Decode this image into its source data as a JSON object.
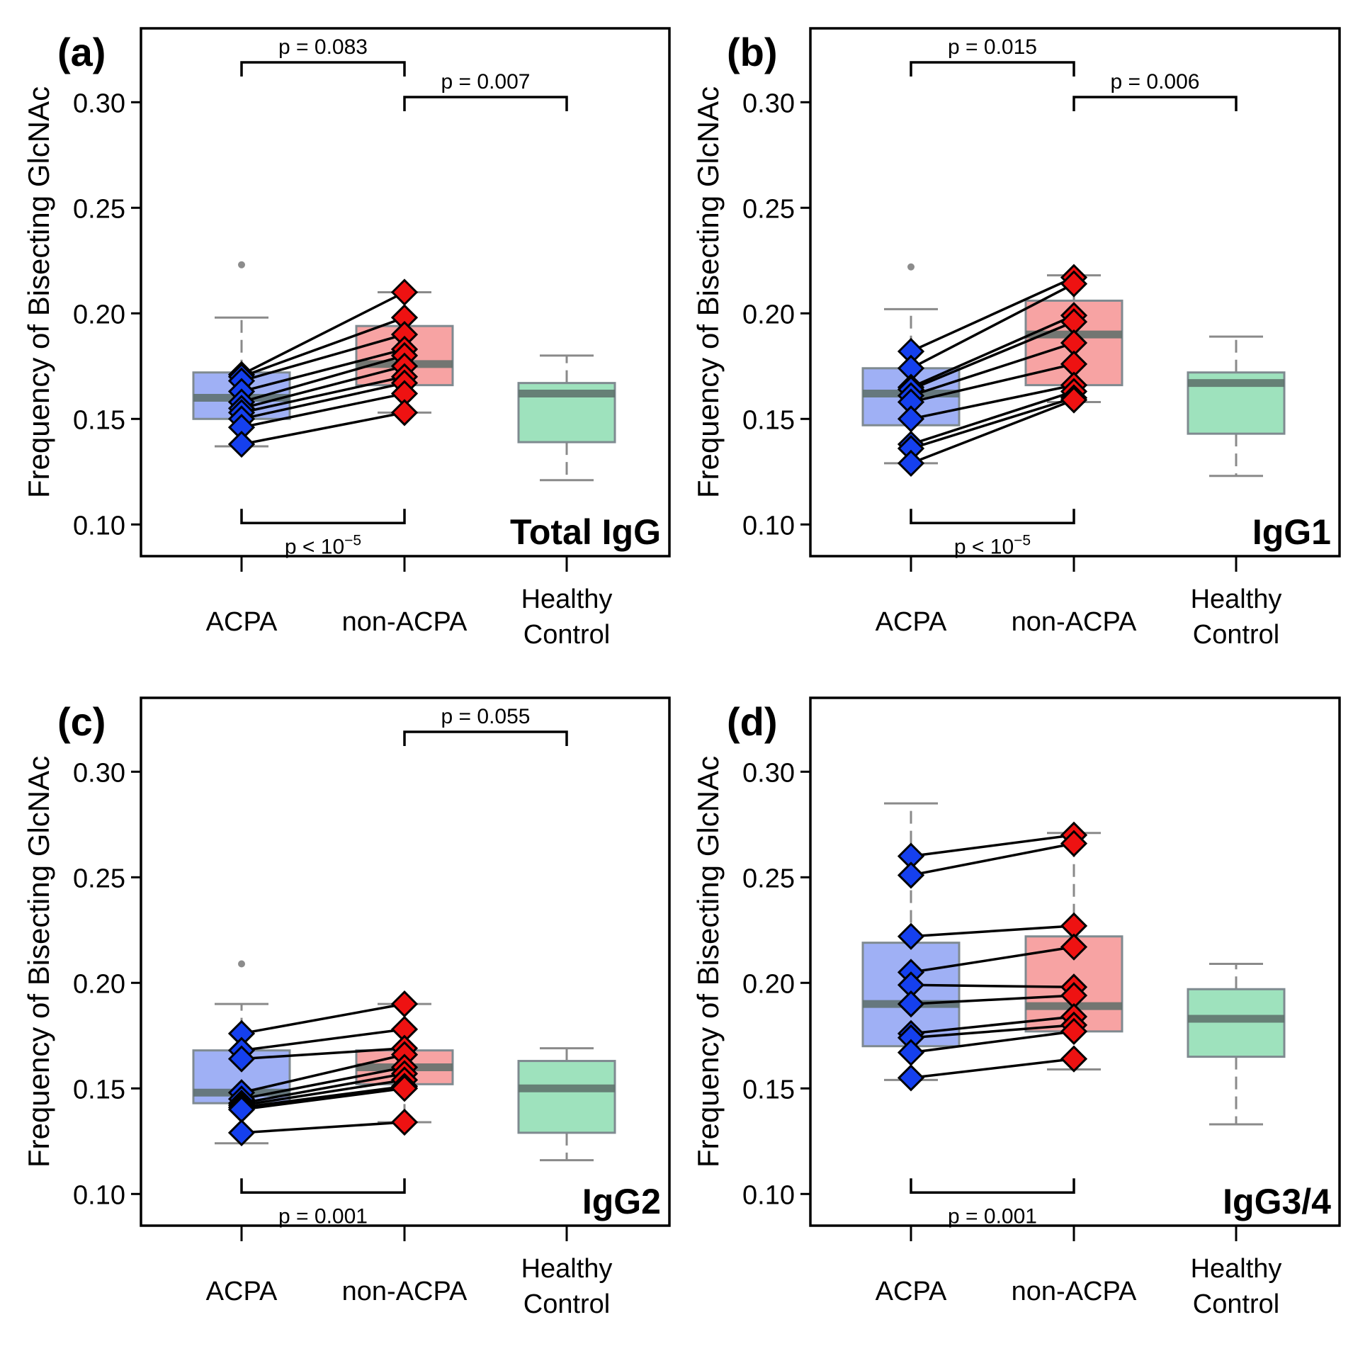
{
  "figure": {
    "ylabel": "Frequency of Bisecting GlcNAc",
    "yticks": [
      0.1,
      0.15,
      0.2,
      0.25,
      0.3
    ],
    "ytick_labels": [
      "0.10",
      "0.15",
      "0.20",
      "0.25",
      "0.30"
    ],
    "ylim": [
      0.085,
      0.335
    ],
    "categories": [
      "ACPA",
      "non-ACPA",
      "Healthy\nControl"
    ],
    "colors": {
      "acpa_box": "#9fb0f5",
      "acpa_point": "#1540ee",
      "nonacpa_box": "#f7a3a3",
      "nonacpa_point": "#ee1212",
      "healthy_box": "#9ee2bd",
      "median_line": "#5d6f6a",
      "whisker": "#8a8a8a"
    }
  },
  "chart_data": [
    {
      "type": "box",
      "panel_label": "(a)",
      "subclass": "Total IgG",
      "categories": [
        "ACPA",
        "non-ACPA",
        "Healthy\nControl"
      ],
      "boxes": [
        {
          "group": "ACPA",
          "min": 0.137,
          "q1": 0.15,
          "median": 0.16,
          "q3": 0.172,
          "max": 0.198,
          "outliers": [
            0.223
          ]
        },
        {
          "group": "non-ACPA",
          "min": 0.153,
          "q1": 0.166,
          "median": 0.176,
          "q3": 0.194,
          "max": 0.21,
          "outliers": []
        },
        {
          "group": "Healthy Control",
          "min": 0.121,
          "q1": 0.139,
          "median": 0.162,
          "q3": 0.167,
          "max": 0.18,
          "outliers": []
        }
      ],
      "paired": {
        "acpa": [
          0.171,
          0.17,
          0.168,
          0.163,
          0.158,
          0.155,
          0.153,
          0.15,
          0.146,
          0.138
        ],
        "non_acpa": [
          0.21,
          0.198,
          0.19,
          0.183,
          0.18,
          0.175,
          0.17,
          0.167,
          0.162,
          0.153
        ]
      },
      "comparisons": [
        {
          "from": "ACPA",
          "to": "non-ACPA",
          "label": "p = 0.083",
          "position": "top-high"
        },
        {
          "from": "non-ACPA",
          "to": "Healthy Control",
          "label": "p = 0.007",
          "position": "top-low"
        },
        {
          "from": "ACPA",
          "to": "non-ACPA",
          "label_base": "p < 10",
          "label_exp": "−5",
          "position": "bottom"
        }
      ]
    },
    {
      "type": "box",
      "panel_label": "(b)",
      "subclass": "IgG1",
      "categories": [
        "ACPA",
        "non-ACPA",
        "Healthy\nControl"
      ],
      "boxes": [
        {
          "group": "ACPA",
          "min": 0.129,
          "q1": 0.147,
          "median": 0.162,
          "q3": 0.174,
          "max": 0.202,
          "outliers": [
            0.222
          ]
        },
        {
          "group": "non-ACPA",
          "min": 0.158,
          "q1": 0.166,
          "median": 0.19,
          "q3": 0.206,
          "max": 0.218,
          "outliers": []
        },
        {
          "group": "Healthy Control",
          "min": 0.123,
          "q1": 0.143,
          "median": 0.167,
          "q3": 0.172,
          "max": 0.189,
          "outliers": []
        }
      ],
      "paired": {
        "acpa": [
          0.182,
          0.174,
          0.165,
          0.164,
          0.161,
          0.158,
          0.15,
          0.138,
          0.136,
          0.129
        ],
        "non_acpa": [
          0.217,
          0.214,
          0.199,
          0.196,
          0.186,
          0.176,
          0.166,
          0.163,
          0.16,
          0.159
        ]
      },
      "comparisons": [
        {
          "from": "ACPA",
          "to": "non-ACPA",
          "label": "p = 0.015",
          "position": "top-high"
        },
        {
          "from": "non-ACPA",
          "to": "Healthy Control",
          "label": "p = 0.006",
          "position": "top-low"
        },
        {
          "from": "ACPA",
          "to": "non-ACPA",
          "label_base": "p < 10",
          "label_exp": "−5",
          "position": "bottom"
        }
      ]
    },
    {
      "type": "box",
      "panel_label": "(c)",
      "subclass": "IgG2",
      "categories": [
        "ACPA",
        "non-ACPA",
        "Healthy\nControl"
      ],
      "boxes": [
        {
          "group": "ACPA",
          "min": 0.124,
          "q1": 0.143,
          "median": 0.148,
          "q3": 0.168,
          "max": 0.19,
          "outliers": [
            0.209
          ]
        },
        {
          "group": "non-ACPA",
          "min": 0.134,
          "q1": 0.152,
          "median": 0.16,
          "q3": 0.168,
          "max": 0.19,
          "outliers": []
        },
        {
          "group": "Healthy Control",
          "min": 0.116,
          "q1": 0.129,
          "median": 0.15,
          "q3": 0.163,
          "max": 0.169,
          "outliers": []
        }
      ],
      "paired": {
        "acpa": [
          0.176,
          0.168,
          0.164,
          0.148,
          0.145,
          0.143,
          0.142,
          0.141,
          0.14,
          0.129
        ],
        "non_acpa": [
          0.19,
          0.178,
          0.169,
          0.166,
          0.16,
          0.157,
          0.154,
          0.151,
          0.15,
          0.134
        ]
      },
      "comparisons": [
        {
          "from": "non-ACPA",
          "to": "Healthy Control",
          "label": "p = 0.055",
          "position": "top-high"
        },
        {
          "from": "ACPA",
          "to": "non-ACPA",
          "label": "p = 0.001",
          "position": "bottom"
        }
      ]
    },
    {
      "type": "box",
      "panel_label": "(d)",
      "subclass": "IgG3/4",
      "categories": [
        "ACPA",
        "non-ACPA",
        "Healthy\nControl"
      ],
      "boxes": [
        {
          "group": "ACPA",
          "min": 0.154,
          "q1": 0.17,
          "median": 0.19,
          "q3": 0.219,
          "max": 0.285,
          "outliers": []
        },
        {
          "group": "non-ACPA",
          "min": 0.159,
          "q1": 0.177,
          "median": 0.189,
          "q3": 0.222,
          "max": 0.271,
          "outliers": []
        },
        {
          "group": "Healthy Control",
          "min": 0.133,
          "q1": 0.165,
          "median": 0.183,
          "q3": 0.197,
          "max": 0.209,
          "outliers": []
        }
      ],
      "paired": {
        "acpa": [
          0.26,
          0.251,
          0.222,
          0.205,
          0.199,
          0.19,
          0.176,
          0.174,
          0.167,
          0.155
        ],
        "non_acpa": [
          0.27,
          0.266,
          0.227,
          0.217,
          0.198,
          0.194,
          0.184,
          0.18,
          0.177,
          0.164
        ]
      },
      "comparisons": [
        {
          "from": "ACPA",
          "to": "non-ACPA",
          "label": "p = 0.001",
          "position": "bottom"
        }
      ]
    }
  ]
}
